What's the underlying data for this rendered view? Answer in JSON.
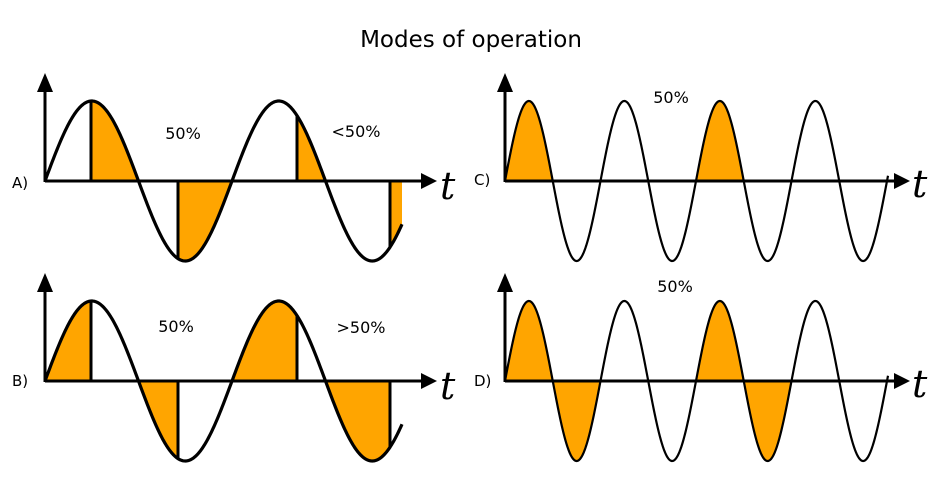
{
  "title": "Modes of operation",
  "colors": {
    "fill": "#FFA500",
    "stroke": "#000000"
  },
  "panels": [
    {
      "id": "A",
      "label": "A)",
      "axis_label": "t",
      "annotations": [
        "50%",
        "<50%"
      ]
    },
    {
      "id": "B",
      "label": "B)",
      "axis_label": "t",
      "annotations": [
        "50%",
        ">50%"
      ]
    },
    {
      "id": "C",
      "label": "C)",
      "axis_label": "t",
      "annotations": [
        "50%"
      ]
    },
    {
      "id": "D",
      "label": "D)",
      "axis_label": "t",
      "annotations": [
        "50%"
      ]
    }
  ]
}
